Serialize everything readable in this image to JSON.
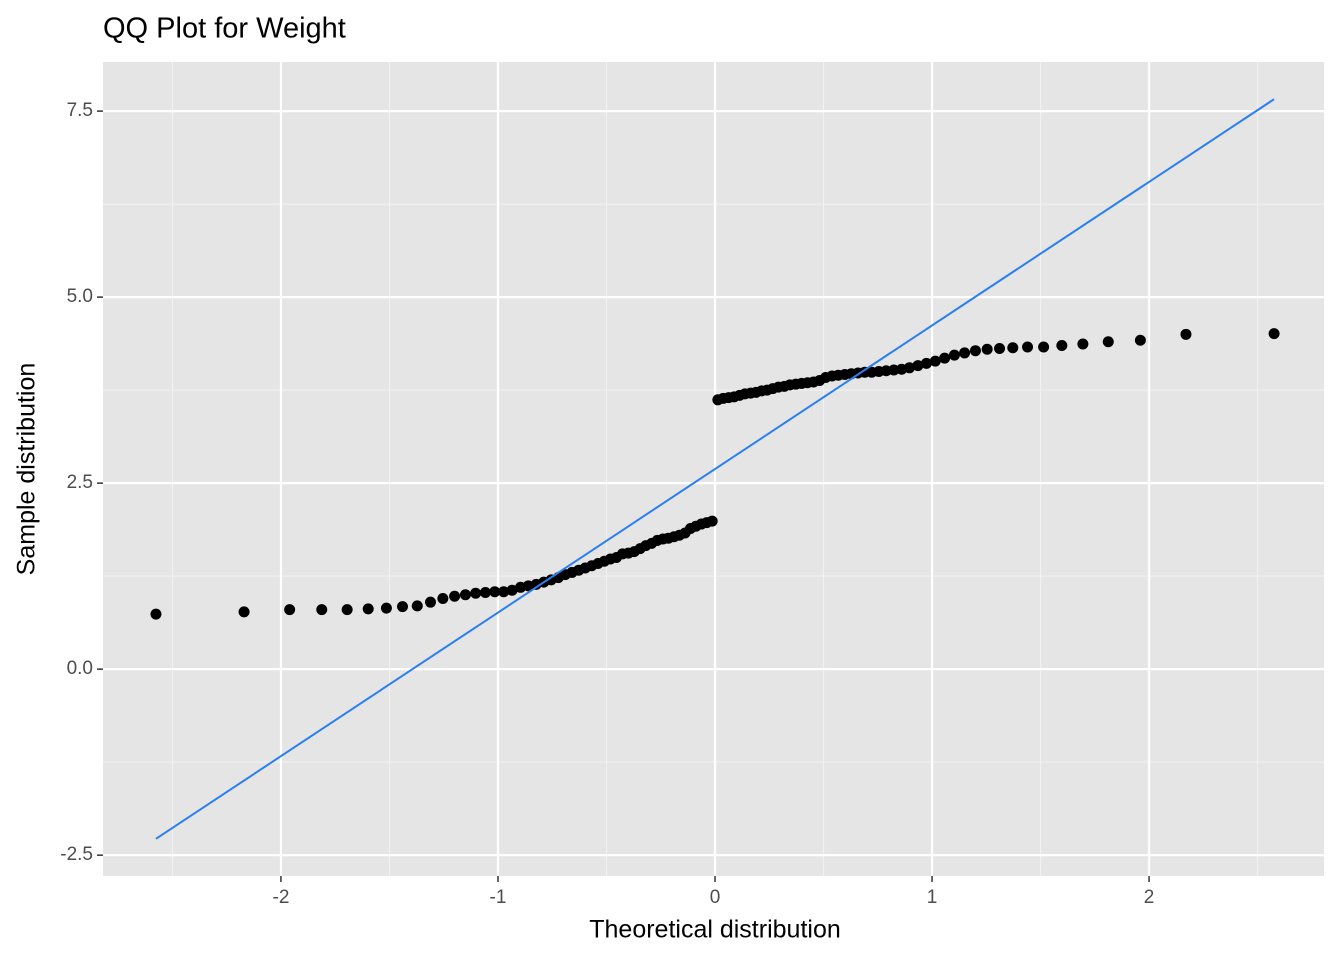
{
  "chart_data": {
    "type": "scatter",
    "title": "QQ Plot for Weight",
    "xlabel": "Theoretical distribution",
    "ylabel": "Sample distribution",
    "x": [
      -2.576,
      -2.17,
      -1.96,
      -1.812,
      -1.695,
      -1.598,
      -1.514,
      -1.44,
      -1.372,
      -1.311,
      -1.254,
      -1.2,
      -1.15,
      -1.103,
      -1.058,
      -1.015,
      -0.974,
      -0.935,
      -0.896,
      -0.86,
      -0.824,
      -0.789,
      -0.755,
      -0.722,
      -0.69,
      -0.659,
      -0.628,
      -0.598,
      -0.568,
      -0.539,
      -0.51,
      -0.482,
      -0.454,
      -0.426,
      -0.399,
      -0.372,
      -0.345,
      -0.319,
      -0.292,
      -0.266,
      -0.24,
      -0.215,
      -0.189,
      -0.164,
      -0.138,
      -0.113,
      -0.088,
      -0.063,
      -0.038,
      -0.013,
      0.013,
      0.038,
      0.063,
      0.088,
      0.113,
      0.138,
      0.164,
      0.189,
      0.215,
      0.24,
      0.266,
      0.292,
      0.319,
      0.345,
      0.372,
      0.399,
      0.426,
      0.454,
      0.482,
      0.51,
      0.539,
      0.568,
      0.598,
      0.628,
      0.659,
      0.69,
      0.722,
      0.755,
      0.789,
      0.824,
      0.86,
      0.896,
      0.935,
      0.974,
      1.015,
      1.058,
      1.103,
      1.15,
      1.2,
      1.254,
      1.311,
      1.372,
      1.44,
      1.514,
      1.598,
      1.695,
      1.812,
      1.96,
      2.17,
      2.576
    ],
    "values": [
      0.74,
      0.77,
      0.8,
      0.8,
      0.8,
      0.81,
      0.82,
      0.84,
      0.85,
      0.9,
      0.95,
      0.98,
      1.0,
      1.02,
      1.03,
      1.04,
      1.04,
      1.06,
      1.1,
      1.12,
      1.14,
      1.17,
      1.2,
      1.23,
      1.27,
      1.3,
      1.33,
      1.36,
      1.39,
      1.42,
      1.45,
      1.48,
      1.5,
      1.55,
      1.56,
      1.58,
      1.62,
      1.66,
      1.69,
      1.73,
      1.75,
      1.76,
      1.78,
      1.8,
      1.83,
      1.89,
      1.92,
      1.95,
      1.97,
      1.99,
      3.62,
      3.64,
      3.65,
      3.66,
      3.68,
      3.7,
      3.71,
      3.72,
      3.74,
      3.75,
      3.77,
      3.79,
      3.8,
      3.82,
      3.83,
      3.84,
      3.85,
      3.86,
      3.88,
      3.92,
      3.94,
      3.95,
      3.96,
      3.97,
      3.98,
      3.99,
      3.99,
      4.0,
      4.01,
      4.02,
      4.03,
      4.05,
      4.08,
      4.11,
      4.14,
      4.18,
      4.22,
      4.25,
      4.28,
      4.3,
      4.31,
      4.32,
      4.33,
      4.33,
      4.35,
      4.37,
      4.4,
      4.42,
      4.5,
      4.51
    ],
    "color": "#000000",
    "reference_line": {
      "x": [
        -2.576,
        2.576
      ],
      "y": [
        -2.28,
        7.66
      ],
      "color": "#2a7ff0"
    },
    "xlim": [
      -2.82,
      2.806
    ],
    "ylim": [
      -2.78,
      8.16
    ],
    "xticks": [
      -2,
      -1,
      0,
      1,
      2
    ],
    "yticks": [
      -2.5,
      {
        "value": 0,
        "label": "0.0"
      },
      2.5,
      {
        "value": 5,
        "label": "5.0"
      },
      7.5
    ],
    "xminor": [
      -2.5,
      -1.5,
      -0.5,
      0.5,
      1.5,
      2.5
    ],
    "yminor": [
      -1.25,
      1.25,
      3.75,
      6.25
    ],
    "grid": true
  }
}
